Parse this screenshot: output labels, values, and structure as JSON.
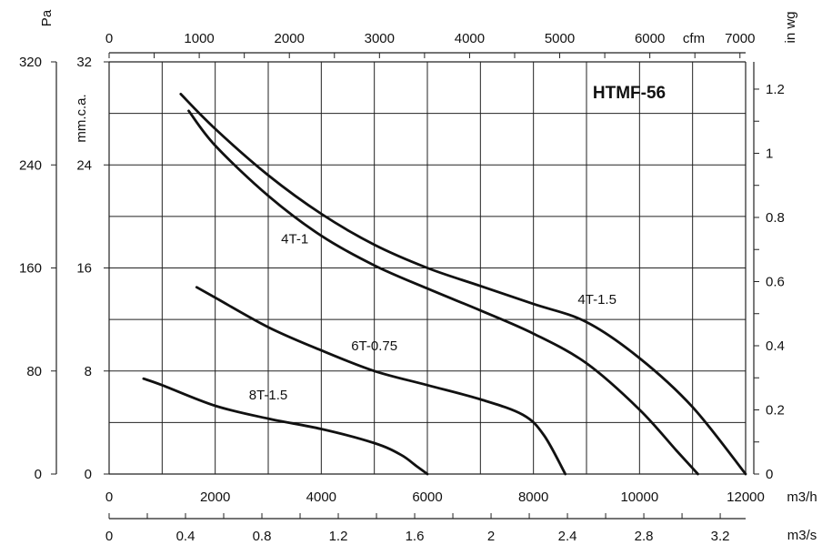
{
  "chart_data": {
    "type": "line",
    "title": "HTMF-56",
    "grid": true,
    "axes": {
      "x_bottom": {
        "unit": "m3/h",
        "range": [
          0,
          12000
        ],
        "ticks": [
          0,
          2000,
          4000,
          6000,
          8000,
          10000,
          12000
        ],
        "tick_labels": [
          "0",
          "2000",
          "4000",
          "6000",
          "8000",
          "10000",
          "12000"
        ]
      },
      "x_bottom_secondary": {
        "unit": "m3/s",
        "range": [
          0,
          3.333
        ],
        "ticks": [
          0,
          0.4,
          0.8,
          1.2,
          1.6,
          2,
          2.4,
          2.8,
          3.2
        ],
        "tick_labels": [
          "0",
          "0.4",
          "0.8",
          "1.2",
          "1.6",
          "2",
          "2.4",
          "2.8",
          "3.2"
        ]
      },
      "x_top": {
        "unit": "cfm",
        "range": [
          0,
          7063
        ],
        "ticks": [
          0,
          1000,
          2000,
          3000,
          4000,
          5000,
          6000,
          7000
        ],
        "tick_labels": [
          "0",
          "1000",
          "2000",
          "3000",
          "4000",
          "5000",
          "6000",
          "7000"
        ]
      },
      "y_left_outer": {
        "unit": "Pa",
        "range": [
          0,
          320
        ],
        "ticks": [
          0,
          80,
          160,
          240,
          320
        ],
        "tick_labels": [
          "0",
          "80",
          "160",
          "240",
          "320"
        ]
      },
      "y_left_inner": {
        "unit": "mm.c.a.",
        "range": [
          0,
          32
        ],
        "ticks": [
          0,
          8,
          16,
          24,
          32
        ],
        "tick_labels": [
          "0",
          "8",
          "16",
          "24",
          "32"
        ]
      },
      "y_right": {
        "unit": "in wg",
        "range": [
          0,
          1.285
        ],
        "ticks": [
          0,
          0.2,
          0.4,
          0.6,
          0.8,
          1,
          1.2
        ],
        "tick_labels": [
          "0",
          "0.2",
          "0.4",
          "0.6",
          "0.8",
          "1",
          "1.2"
        ]
      }
    },
    "series": [
      {
        "name": "4T-1.5",
        "x_unit": "m3/h",
        "y_unit": "mm.c.a.",
        "points": [
          [
            1350,
            29.5
          ],
          [
            2000,
            26.8
          ],
          [
            3000,
            23.2
          ],
          [
            4000,
            20.2
          ],
          [
            5000,
            17.8
          ],
          [
            6000,
            16.0
          ],
          [
            7000,
            14.6
          ],
          [
            8000,
            13.2
          ],
          [
            9000,
            11.8
          ],
          [
            10000,
            9.0
          ],
          [
            11000,
            5.2
          ],
          [
            12000,
            0
          ]
        ]
      },
      {
        "name": "4T-1",
        "x_unit": "m3/h",
        "y_unit": "mm.c.a.",
        "points": [
          [
            1500,
            28.2
          ],
          [
            2000,
            25.5
          ],
          [
            3000,
            21.6
          ],
          [
            4000,
            18.5
          ],
          [
            5000,
            16.2
          ],
          [
            6000,
            14.4
          ],
          [
            7000,
            12.7
          ],
          [
            8000,
            10.9
          ],
          [
            9000,
            8.6
          ],
          [
            10000,
            5.0
          ],
          [
            10700,
            1.8
          ],
          [
            11100,
            0
          ]
        ]
      },
      {
        "name": "6T-0.75",
        "x_unit": "m3/h",
        "y_unit": "mm.c.a.",
        "points": [
          [
            1650,
            14.5
          ],
          [
            2000,
            13.7
          ],
          [
            3000,
            11.4
          ],
          [
            4000,
            9.6
          ],
          [
            5000,
            8.0
          ],
          [
            6000,
            6.9
          ],
          [
            7000,
            5.8
          ],
          [
            7800,
            4.6
          ],
          [
            8200,
            3.0
          ],
          [
            8600,
            0
          ]
        ]
      },
      {
        "name": "8T-1.5",
        "x_unit": "m3/h",
        "y_unit": "mm.c.a.",
        "points": [
          [
            650,
            7.4
          ],
          [
            1000,
            6.9
          ],
          [
            2000,
            5.3
          ],
          [
            3000,
            4.3
          ],
          [
            4000,
            3.5
          ],
          [
            5000,
            2.4
          ],
          [
            5500,
            1.5
          ],
          [
            5800,
            0.6
          ],
          [
            6000,
            0
          ]
        ]
      }
    ],
    "annotations": [
      {
        "text": "4T-1",
        "x": 3500,
        "y": 17.9
      },
      {
        "text": "4T-1.5",
        "x": 9200,
        "y": 13.2
      },
      {
        "text": "6T-0.75",
        "x": 5000,
        "y": 9.6
      },
      {
        "text": "8T-1.5",
        "x": 3000,
        "y": 5.8
      }
    ]
  }
}
